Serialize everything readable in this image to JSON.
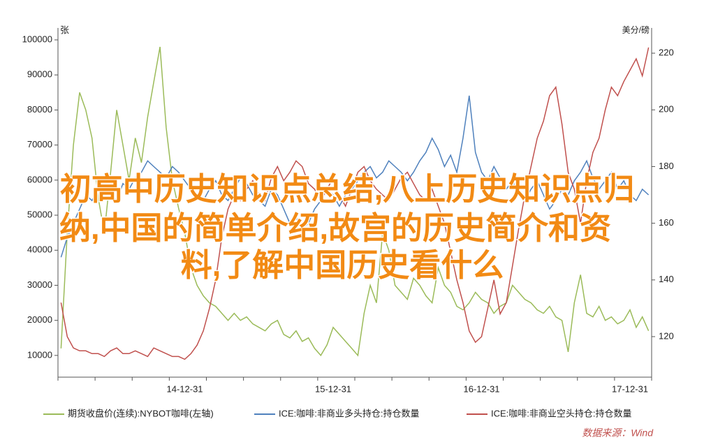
{
  "chart_data": {
    "type": "line",
    "ylabel": "张",
    "y2label": "美分/磅",
    "source": "数据来源：Wind",
    "annotation_lines": [
      "初高中历史知识点总结,八上历史知识点归",
      "纳,中国的简单介绍,故宫的历史简介和资",
      "料,了解中国历史看什么"
    ],
    "categories": [
      null,
      null,
      null,
      null,
      null,
      null,
      null,
      null,
      null,
      null,
      null,
      null,
      null,
      null,
      null,
      null,
      null,
      null,
      null,
      null,
      "14-12-31",
      null,
      null,
      null,
      null,
      null,
      null,
      null,
      null,
      null,
      null,
      null,
      null,
      null,
      null,
      null,
      null,
      null,
      null,
      null,
      null,
      null,
      null,
      null,
      "15-12-31",
      null,
      null,
      null,
      null,
      null,
      null,
      null,
      null,
      null,
      null,
      null,
      null,
      null,
      null,
      null,
      null,
      null,
      null,
      null,
      null,
      null,
      null,
      null,
      "16-12-31",
      null,
      null,
      null,
      null,
      null,
      null,
      null,
      null,
      null,
      null,
      null,
      null,
      null,
      null,
      null,
      null,
      null,
      null,
      null,
      null,
      null,
      null,
      null,
      "17-12-31",
      null,
      null,
      null
    ],
    "ylim": [
      3800,
      103400
    ],
    "yticks": [
      10000,
      20000,
      30000,
      40000,
      50000,
      60000,
      70000,
      80000,
      90000,
      100000
    ],
    "y2lim": [
      105.7,
      228.9
    ],
    "y2ticks": [
      120,
      140,
      160,
      180,
      200,
      220
    ],
    "grid": false,
    "series": [
      {
        "name": "期货收盘价(连续):NYBOT咖啡(左轴)",
        "color": "#9bbb59",
        "axis": "y",
        "values": [
          12000,
          45000,
          70000,
          85000,
          80000,
          72000,
          55000,
          45000,
          62000,
          80000,
          70000,
          60000,
          72000,
          65000,
          78000,
          88000,
          98000,
          75000,
          60000,
          52000,
          45000,
          35000,
          30000,
          27000,
          25000,
          24000,
          22000,
          20000,
          22000,
          20000,
          21000,
          19000,
          18000,
          17000,
          19000,
          20000,
          16000,
          15000,
          17000,
          14000,
          15000,
          12000,
          10000,
          13000,
          18000,
          16000,
          14000,
          12000,
          10000,
          22000,
          30000,
          25000,
          45000,
          40000,
          30000,
          28000,
          26000,
          32000,
          30000,
          27000,
          25000,
          35000,
          30000,
          28000,
          24000,
          23000,
          25000,
          28000,
          26000,
          25000,
          22000,
          24000,
          25000,
          30000,
          28000,
          26000,
          25000,
          23000,
          22000,
          24000,
          21000,
          20000,
          11000,
          25000,
          33000,
          22000,
          21000,
          24000,
          20000,
          21000,
          19000,
          20000,
          23000,
          18000,
          21000,
          17000
        ]
      },
      {
        "name": "ICE:咖啡:非商业多头持仓:持仓数量",
        "color": "#4f81bd",
        "axis": "y2",
        "values": [
          148,
          155,
          160,
          165,
          170,
          168,
          172,
          175,
          170,
          168,
          174,
          172,
          176,
          178,
          182,
          180,
          178,
          176,
          180,
          178,
          175,
          172,
          170,
          168,
          172,
          175,
          170,
          168,
          172,
          176,
          174,
          170,
          168,
          166,
          172,
          170,
          165,
          160,
          162,
          158,
          160,
          165,
          168,
          172,
          170,
          166,
          170,
          172,
          175,
          178,
          180,
          176,
          178,
          182,
          180,
          178,
          175,
          178,
          182,
          185,
          190,
          186,
          180,
          184,
          178,
          190,
          205,
          185,
          178,
          175,
          180,
          176,
          172,
          175,
          170,
          168,
          172,
          175,
          170,
          165,
          168,
          172,
          170,
          175,
          178,
          182,
          176,
          172,
          175,
          178,
          172,
          175,
          170,
          168,
          172,
          170
        ]
      },
      {
        "name": "ICE:咖啡:非商业空头持仓:持仓数量",
        "color": "#c0504d",
        "axis": "y2",
        "values": [
          132,
          120,
          116,
          115,
          115,
          114,
          114,
          113,
          115,
          116,
          114,
          114,
          115,
          114,
          113,
          116,
          115,
          114,
          113,
          113,
          112,
          114,
          117,
          122,
          130,
          140,
          155,
          165,
          170,
          168,
          172,
          175,
          170,
          168,
          176,
          180,
          175,
          178,
          182,
          180,
          174,
          172,
          168,
          172,
          176,
          170,
          166,
          172,
          178,
          180,
          175,
          172,
          170,
          168,
          172,
          176,
          178,
          174,
          170,
          168,
          172,
          166,
          160,
          150,
          140,
          132,
          122,
          118,
          120,
          130,
          140,
          128,
          132,
          145,
          158,
          170,
          180,
          190,
          196,
          205,
          208,
          195,
          178,
          172,
          160,
          175,
          185,
          190,
          200,
          208,
          205,
          210,
          214,
          218,
          212,
          222
        ]
      }
    ]
  }
}
